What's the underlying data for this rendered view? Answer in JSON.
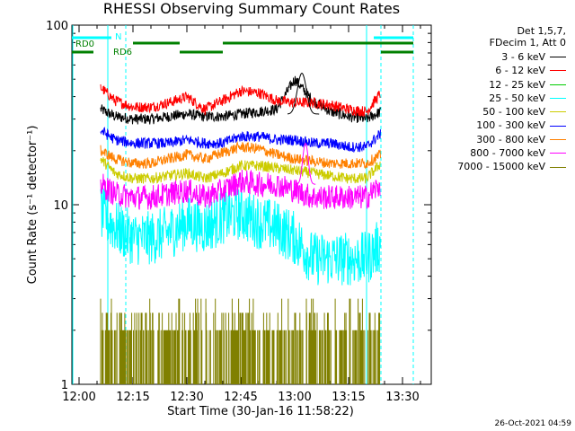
{
  "chart_data": {
    "type": "line",
    "title": "RHESSI Observing Summary Count Rates",
    "xlabel": "Start Time (30-Jan-16 11:58:22)",
    "ylabel": "Count Rate (s⁻¹ detector⁻¹)",
    "x_unit": "time of day",
    "xlim": [
      "11:58",
      "13:38"
    ],
    "ylim": [
      1,
      100
    ],
    "y_scale": "log",
    "x_ticks": [
      "12:00",
      "12:15",
      "12:30",
      "12:45",
      "13:00",
      "13:15",
      "13:30"
    ],
    "y_ticks": [
      "1",
      "10",
      "100"
    ],
    "grid": false,
    "legend_position": "right",
    "legend_header": [
      "Det 1,5,7,",
      "FDecim 1, Att 0"
    ],
    "x": [
      "12:06",
      "12:10",
      "12:15",
      "12:20",
      "12:25",
      "12:30",
      "12:35",
      "12:40",
      "12:45",
      "12:50",
      "12:55",
      "13:00",
      "13:05",
      "13:10",
      "13:15",
      "13:20",
      "13:24"
    ],
    "series": [
      {
        "name": "3 - 6 keV",
        "color": "#000000",
        "values": [
          34,
          31,
          30,
          30,
          31,
          32,
          31,
          31,
          32,
          33,
          34,
          50,
          38,
          33,
          31,
          30,
          33
        ]
      },
      {
        "name": "6 - 12 keV",
        "color": "#ff0000",
        "values": [
          45,
          38,
          35,
          35,
          37,
          40,
          34,
          38,
          43,
          42,
          38,
          37,
          37,
          36,
          34,
          33,
          42
        ]
      },
      {
        "name": "12 - 25 keV",
        "color": "#00cc00",
        "values": [
          null,
          null,
          null,
          null,
          null,
          null,
          null,
          null,
          null,
          null,
          null,
          null,
          null,
          null,
          null,
          null,
          null
        ]
      },
      {
        "name": "25 - 50 keV",
        "color": "#00ffff",
        "values": [
          9,
          7.5,
          6.5,
          6.5,
          7,
          8,
          7.5,
          8.5,
          9,
          8,
          7.5,
          6.5,
          5,
          5,
          5,
          5,
          6
        ]
      },
      {
        "name": "50 - 100 keV",
        "color": "#cccc00",
        "values": [
          18,
          15,
          14,
          14,
          14.5,
          15,
          14,
          15,
          16.5,
          16.5,
          16,
          15.5,
          15,
          14.5,
          14,
          14,
          17
        ]
      },
      {
        "name": "100 - 300 keV",
        "color": "#0000ff",
        "values": [
          26,
          23,
          22,
          22,
          22,
          23,
          22,
          22,
          24,
          24,
          23,
          23,
          22,
          22,
          21,
          21,
          25
        ]
      },
      {
        "name": "300 - 800 keV",
        "color": "#ff8000",
        "values": [
          20,
          18,
          17,
          17,
          18,
          19,
          18,
          19.5,
          21,
          20.5,
          19,
          18,
          17.5,
          17,
          17,
          17,
          19
        ]
      },
      {
        "name": "800 - 7000 keV",
        "color": "#ff00ff",
        "values": [
          13,
          11.5,
          11,
          11,
          11.5,
          12,
          11,
          12,
          13.5,
          13,
          13,
          12,
          11,
          11,
          11,
          11,
          13
        ]
      },
      {
        "name": "7000 - 15000 keV",
        "color": "#808000",
        "values": [
          1.5,
          1.4,
          1.1,
          1.2,
          1.4,
          1.5,
          1.6,
          1.5,
          1.4,
          1.5,
          1.5,
          1.3,
          1.3,
          1.3,
          1.4,
          1.4,
          1.5
        ]
      }
    ],
    "annotations": {
      "segments": [
        {
          "label": "N",
          "color": "#00ffff",
          "row": 1,
          "ranges": [
            [
              "11:58",
              "12:09"
            ],
            [
              "13:22",
              "13:33"
            ]
          ]
        },
        {
          "label": "RD0",
          "color": "#008000",
          "row": 2,
          "ranges": [
            [
              "12:15",
              "12:28"
            ],
            [
              "12:40",
              "13:24"
            ],
            [
              "13:24",
              "13:33"
            ]
          ]
        },
        {
          "label": "RD6",
          "color": "#008000",
          "row": 3,
          "ranges": [
            [
              "11:58",
              "12:04"
            ],
            [
              "12:28",
              "12:40"
            ],
            [
              "13:24",
              "13:33"
            ]
          ]
        }
      ],
      "eclipse_lines_solid": [
        "12:08",
        "13:20"
      ],
      "eclipse_lines_dashed": [
        "12:13",
        "13:24",
        "13:33"
      ]
    }
  },
  "timestamp": "26-Oct-2021 04:59"
}
